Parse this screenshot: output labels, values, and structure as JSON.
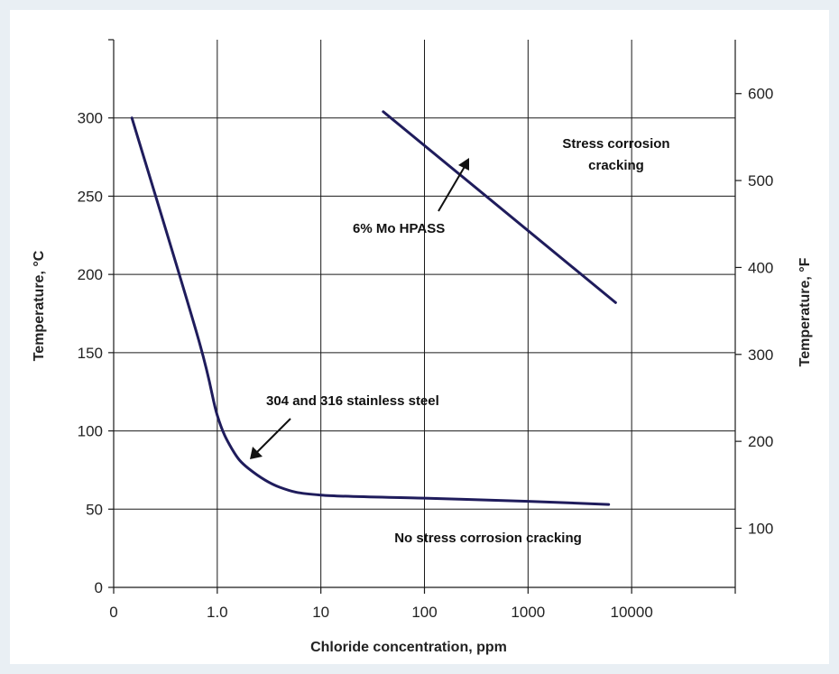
{
  "chart_data": {
    "type": "line",
    "title": "",
    "xlabel": "Chloride concentration, ppm",
    "ylabel": "Temperature, °C",
    "y2label": "Temperature, °F",
    "x_scale": "log",
    "x_ticks": [
      {
        "value": 0.1,
        "label": "0"
      },
      {
        "value": 1,
        "label": "1.0"
      },
      {
        "value": 10,
        "label": "10"
      },
      {
        "value": 100,
        "label": "100"
      },
      {
        "value": 1000,
        "label": "1000"
      },
      {
        "value": 10000,
        "label": "10000"
      },
      {
        "value": 100000,
        "label": ""
      }
    ],
    "xlim": [
      0.1,
      100000
    ],
    "ylim": [
      0,
      350
    ],
    "y_ticks": [
      0,
      50,
      100,
      150,
      200,
      250,
      300
    ],
    "y2_ticks": [
      100,
      200,
      300,
      400,
      500,
      600
    ],
    "y2_unit": "F",
    "grid": true,
    "line_color": "#1f1c5c",
    "series": [
      {
        "name": "304 and 316 stainless steel",
        "points": [
          {
            "x": 0.15,
            "y": 300
          },
          {
            "x": 0.65,
            "y": 160
          },
          {
            "x": 1.0,
            "y": 110
          },
          {
            "x": 1.4,
            "y": 88
          },
          {
            "x": 2.0,
            "y": 76
          },
          {
            "x": 4.0,
            "y": 64
          },
          {
            "x": 10,
            "y": 59
          },
          {
            "x": 100,
            "y": 57
          },
          {
            "x": 1000,
            "y": 55
          },
          {
            "x": 6000,
            "y": 53
          }
        ]
      },
      {
        "name": "6% Mo HPASS",
        "points": [
          {
            "x": 40,
            "y": 304
          },
          {
            "x": 7000,
            "y": 182
          }
        ]
      }
    ],
    "annotations": {
      "ss_label": "304 and 316 stainless steel",
      "mo_label": "6% Mo HPASS",
      "scc_line1": "Stress corrosion",
      "scc_line2": "cracking",
      "no_scc": "No stress corrosion cracking"
    }
  }
}
